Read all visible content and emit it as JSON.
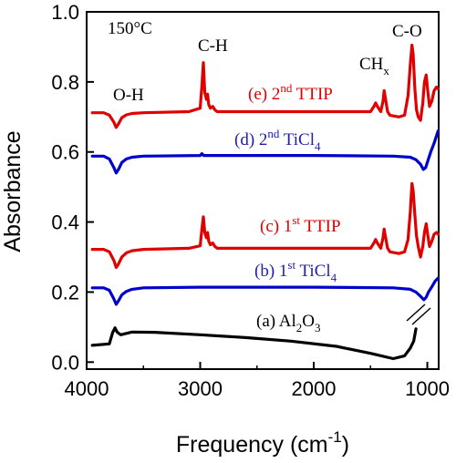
{
  "chart_data": {
    "type": "line",
    "xlabel": "Frequency (cm",
    "xlabel_sup": "-1",
    "xlabel_end": ")",
    "ylabel": "Absorbance",
    "xlim": [
      4000,
      900
    ],
    "ylim": [
      -0.02,
      1.0
    ],
    "x_ticks": [
      4000,
      3000,
      2000,
      1000
    ],
    "x_tick_labels": [
      "4000",
      "3000",
      "2000",
      "1000"
    ],
    "y_ticks": [
      0.0,
      0.2,
      0.4,
      0.6,
      0.8,
      1.0
    ],
    "y_tick_labels": [
      "0.0",
      "0.2",
      "0.4",
      "0.6",
      "0.8",
      "1.0"
    ],
    "temperature_label": "150°C",
    "peak_labels": {
      "oh": "O-H",
      "ch": "C-H",
      "chx": "CH",
      "chx_sub": "x",
      "co": "C-O"
    },
    "series": [
      {
        "name": "(a) Al2O3",
        "color": "#000000",
        "label_parts": [
          "(a) Al",
          "2",
          "O",
          "3"
        ],
        "x": [
          3950,
          3800,
          3770,
          3750,
          3730,
          3700,
          3600,
          3400,
          3000,
          2600,
          2200,
          1800,
          1500,
          1300,
          1200,
          1150,
          1120,
          1100
        ],
        "y": [
          0.048,
          0.052,
          0.085,
          0.098,
          0.085,
          0.078,
          0.086,
          0.085,
          0.078,
          0.07,
          0.06,
          0.045,
          0.025,
          0.01,
          0.018,
          0.04,
          0.06,
          0.095
        ]
      },
      {
        "name": "(b) 1st TiCl4",
        "color": "#0000cc",
        "label_parts": [
          "(b) 1",
          "st",
          " TiCl",
          "4"
        ],
        "x": [
          3950,
          3850,
          3800,
          3760,
          3740,
          3720,
          3690,
          3650,
          3600,
          3500,
          3000,
          2000,
          1300,
          1150,
          1100,
          1060,
          1030,
          1010,
          990,
          960,
          930,
          905
        ],
        "y": [
          0.212,
          0.212,
          0.205,
          0.18,
          0.165,
          0.175,
          0.192,
          0.202,
          0.208,
          0.212,
          0.214,
          0.214,
          0.212,
          0.208,
          0.2,
          0.188,
          0.178,
          0.185,
          0.2,
          0.215,
          0.232,
          0.24
        ]
      },
      {
        "name": "(c) 1st TTIP",
        "color": "#e00000",
        "label_parts": [
          "(c) 1",
          "st",
          " TTIP"
        ],
        "x": [
          3950,
          3850,
          3800,
          3760,
          3740,
          3720,
          3690,
          3650,
          3600,
          3500,
          3100,
          3000,
          2985,
          2972,
          2960,
          2945,
          2935,
          2925,
          2910,
          2890,
          2870,
          2850,
          2600,
          1500,
          1470,
          1455,
          1440,
          1410,
          1390,
          1380,
          1370,
          1350,
          1330,
          1250,
          1200,
          1170,
          1150,
          1135,
          1125,
          1110,
          1095,
          1080,
          1060,
          1040,
          1025,
          1010,
          995,
          980,
          960,
          940,
          920,
          905
        ],
        "y": [
          0.322,
          0.322,
          0.315,
          0.29,
          0.27,
          0.28,
          0.3,
          0.312,
          0.318,
          0.322,
          0.325,
          0.332,
          0.38,
          0.415,
          0.37,
          0.355,
          0.37,
          0.345,
          0.335,
          0.34,
          0.33,
          0.325,
          0.325,
          0.325,
          0.34,
          0.35,
          0.34,
          0.325,
          0.355,
          0.38,
          0.36,
          0.325,
          0.315,
          0.31,
          0.315,
          0.35,
          0.43,
          0.51,
          0.49,
          0.42,
          0.36,
          0.33,
          0.3,
          0.33,
          0.37,
          0.395,
          0.36,
          0.33,
          0.345,
          0.365,
          0.37,
          0.365
        ]
      },
      {
        "name": "(d) 2nd TiCl4",
        "color": "#0000cc",
        "label_parts": [
          "(d) 2",
          "nd",
          " TiCl",
          "4"
        ],
        "x": [
          3950,
          3850,
          3800,
          3760,
          3740,
          3720,
          3690,
          3650,
          3600,
          3500,
          3000,
          2985,
          2970,
          2000,
          1300,
          1150,
          1100,
          1060,
          1035,
          1015,
          995,
          970,
          940,
          915,
          905
        ],
        "y": [
          0.588,
          0.588,
          0.58,
          0.555,
          0.54,
          0.55,
          0.57,
          0.58,
          0.585,
          0.588,
          0.59,
          0.595,
          0.59,
          0.59,
          0.588,
          0.585,
          0.578,
          0.565,
          0.55,
          0.555,
          0.575,
          0.6,
          0.625,
          0.65,
          0.66
        ]
      },
      {
        "name": "(e) 2nd TTIP",
        "color": "#e00000",
        "label_parts": [
          "(e) 2",
          "nd",
          " TTIP"
        ],
        "x": [
          3950,
          3850,
          3800,
          3760,
          3740,
          3720,
          3690,
          3650,
          3600,
          3500,
          3100,
          3000,
          2985,
          2972,
          2960,
          2945,
          2935,
          2925,
          2910,
          2890,
          2870,
          2850,
          2600,
          1500,
          1470,
          1455,
          1440,
          1410,
          1390,
          1380,
          1370,
          1350,
          1330,
          1250,
          1200,
          1170,
          1150,
          1135,
          1125,
          1110,
          1095,
          1080,
          1060,
          1040,
          1025,
          1010,
          995,
          980,
          960,
          940,
          920,
          905
        ],
        "y": [
          0.712,
          0.712,
          0.705,
          0.685,
          0.67,
          0.68,
          0.698,
          0.706,
          0.71,
          0.712,
          0.715,
          0.725,
          0.79,
          0.855,
          0.77,
          0.75,
          0.765,
          0.735,
          0.725,
          0.73,
          0.72,
          0.715,
          0.715,
          0.715,
          0.73,
          0.74,
          0.73,
          0.715,
          0.745,
          0.775,
          0.755,
          0.715,
          0.705,
          0.7,
          0.705,
          0.76,
          0.85,
          0.905,
          0.88,
          0.78,
          0.72,
          0.7,
          0.69,
          0.74,
          0.8,
          0.82,
          0.77,
          0.73,
          0.745,
          0.775,
          0.785,
          0.78
        ]
      }
    ]
  }
}
